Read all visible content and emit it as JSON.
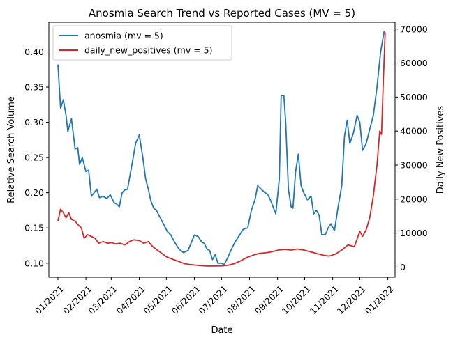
{
  "chart_data": {
    "type": "line",
    "title": "Anosmia Search Trend vs Reported Cases (MV = 5)",
    "xlabel": "Date",
    "ylabel_left": "Relative Search Volume",
    "ylabel_right": "Daily New Positives",
    "x_ticks": [
      "01/2021",
      "02/2021",
      "03/2021",
      "04/2021",
      "05/2021",
      "06/2021",
      "07/2021",
      "08/2021",
      "09/2021",
      "10/2021",
      "11/2021",
      "12/2021",
      "01/2022"
    ],
    "y_left_ticks": [
      "0.10",
      "0.15",
      "0.20",
      "0.25",
      "0.30",
      "0.35",
      "0.40"
    ],
    "y_right_ticks": [
      "0",
      "10000",
      "20000",
      "30000",
      "40000",
      "50000",
      "60000",
      "70000"
    ],
    "y_left_lim": [
      0.08,
      0.442
    ],
    "y_right_lim": [
      -3000,
      72000
    ],
    "x_lim": [
      "2020-12-22",
      "2022-01-09"
    ],
    "legend_position": "top-left",
    "series": [
      {
        "name": "anosmia (mv = 5)",
        "axis": "left",
        "color": "#1f77b4",
        "points": [
          [
            "2021-01-01",
            0.382
          ],
          [
            "2021-01-04",
            0.32
          ],
          [
            "2021-01-07",
            0.332
          ],
          [
            "2021-01-10",
            0.31
          ],
          [
            "2021-01-12",
            0.287
          ],
          [
            "2021-01-16",
            0.305
          ],
          [
            "2021-01-20",
            0.262
          ],
          [
            "2021-01-23",
            0.264
          ],
          [
            "2021-01-25",
            0.24
          ],
          [
            "2021-01-28",
            0.25
          ],
          [
            "2021-02-01",
            0.23
          ],
          [
            "2021-02-04",
            0.232
          ],
          [
            "2021-02-07",
            0.195
          ],
          [
            "2021-02-10",
            0.2
          ],
          [
            "2021-02-13",
            0.205
          ],
          [
            "2021-02-16",
            0.193
          ],
          [
            "2021-02-20",
            0.195
          ],
          [
            "2021-02-24",
            0.192
          ],
          [
            "2021-02-28",
            0.197
          ],
          [
            "2021-03-04",
            0.186
          ],
          [
            "2021-03-07",
            0.184
          ],
          [
            "2021-03-10",
            0.18
          ],
          [
            "2021-03-13",
            0.2
          ],
          [
            "2021-03-16",
            0.204
          ],
          [
            "2021-03-19",
            0.205
          ],
          [
            "2021-03-24",
            0.24
          ],
          [
            "2021-03-28",
            0.27
          ],
          [
            "2021-04-01",
            0.282
          ],
          [
            "2021-04-05",
            0.25
          ],
          [
            "2021-04-08",
            0.22
          ],
          [
            "2021-04-11",
            0.205
          ],
          [
            "2021-04-14",
            0.188
          ],
          [
            "2021-04-17",
            0.178
          ],
          [
            "2021-04-20",
            0.175
          ],
          [
            "2021-04-24",
            0.165
          ],
          [
            "2021-04-28",
            0.155
          ],
          [
            "2021-05-02",
            0.145
          ],
          [
            "2021-05-06",
            0.14
          ],
          [
            "2021-05-10",
            0.13
          ],
          [
            "2021-05-15",
            0.12
          ],
          [
            "2021-05-20",
            0.115
          ],
          [
            "2021-05-25",
            0.118
          ],
          [
            "2021-06-01",
            0.14
          ],
          [
            "2021-06-05",
            0.138
          ],
          [
            "2021-06-09",
            0.13
          ],
          [
            "2021-06-12",
            0.128
          ],
          [
            "2021-06-15",
            0.12
          ],
          [
            "2021-06-18",
            0.118
          ],
          [
            "2021-06-21",
            0.105
          ],
          [
            "2021-06-24",
            0.112
          ],
          [
            "2021-06-27",
            0.1
          ],
          [
            "2021-07-01",
            0.1
          ],
          [
            "2021-07-04",
            0.098
          ],
          [
            "2021-07-08",
            0.108
          ],
          [
            "2021-07-12",
            0.12
          ],
          [
            "2021-07-16",
            0.13
          ],
          [
            "2021-07-20",
            0.138
          ],
          [
            "2021-07-25",
            0.148
          ],
          [
            "2021-07-30",
            0.15
          ],
          [
            "2021-08-03",
            0.175
          ],
          [
            "2021-08-07",
            0.19
          ],
          [
            "2021-08-10",
            0.21
          ],
          [
            "2021-08-14",
            0.205
          ],
          [
            "2021-08-18",
            0.2
          ],
          [
            "2021-08-21",
            0.198
          ],
          [
            "2021-08-24",
            0.19
          ],
          [
            "2021-08-27",
            0.18
          ],
          [
            "2021-08-30",
            0.17
          ],
          [
            "2021-09-03",
            0.22
          ],
          [
            "2021-09-05",
            0.338
          ],
          [
            "2021-09-08",
            0.338
          ],
          [
            "2021-09-10",
            0.3
          ],
          [
            "2021-09-13",
            0.205
          ],
          [
            "2021-09-16",
            0.18
          ],
          [
            "2021-09-18",
            0.178
          ],
          [
            "2021-09-21",
            0.23
          ],
          [
            "2021-09-24",
            0.255
          ],
          [
            "2021-09-27",
            0.21
          ],
          [
            "2021-09-30",
            0.2
          ],
          [
            "2021-10-04",
            0.19
          ],
          [
            "2021-10-08",
            0.195
          ],
          [
            "2021-10-11",
            0.17
          ],
          [
            "2021-10-14",
            0.175
          ],
          [
            "2021-10-17",
            0.168
          ],
          [
            "2021-10-20",
            0.14
          ],
          [
            "2021-10-24",
            0.141
          ],
          [
            "2021-10-27",
            0.15
          ],
          [
            "2021-10-30",
            0.156
          ],
          [
            "2021-11-03",
            0.146
          ],
          [
            "2021-11-07",
            0.18
          ],
          [
            "2021-11-11",
            0.21
          ],
          [
            "2021-11-14",
            0.28
          ],
          [
            "2021-11-17",
            0.303
          ],
          [
            "2021-11-20",
            0.27
          ],
          [
            "2021-11-24",
            0.285
          ],
          [
            "2021-11-28",
            0.31
          ],
          [
            "2021-12-01",
            0.3
          ],
          [
            "2021-12-04",
            0.26
          ],
          [
            "2021-12-08",
            0.27
          ],
          [
            "2021-12-12",
            0.29
          ],
          [
            "2021-12-16",
            0.31
          ],
          [
            "2021-12-20",
            0.35
          ],
          [
            "2021-12-24",
            0.4
          ],
          [
            "2021-12-28",
            0.43
          ]
        ]
      },
      {
        "name": "daily_new_positives (mv = 5)",
        "axis": "right",
        "color": "#d62728",
        "points": [
          [
            "2021-01-01",
            13500
          ],
          [
            "2021-01-04",
            17000
          ],
          [
            "2021-01-07",
            16000
          ],
          [
            "2021-01-10",
            14500
          ],
          [
            "2021-01-13",
            16000
          ],
          [
            "2021-01-16",
            14000
          ],
          [
            "2021-01-20",
            13500
          ],
          [
            "2021-01-23",
            12500
          ],
          [
            "2021-01-27",
            11500
          ],
          [
            "2021-01-30",
            8500
          ],
          [
            "2021-02-03",
            9500
          ],
          [
            "2021-02-07",
            9000
          ],
          [
            "2021-02-11",
            8500
          ],
          [
            "2021-02-15",
            7000
          ],
          [
            "2021-02-20",
            7500
          ],
          [
            "2021-02-25",
            7000
          ],
          [
            "2021-03-01",
            7200
          ],
          [
            "2021-03-06",
            6800
          ],
          [
            "2021-03-11",
            7000
          ],
          [
            "2021-03-16",
            6500
          ],
          [
            "2021-03-21",
            7500
          ],
          [
            "2021-03-26",
            8000
          ],
          [
            "2021-04-01",
            7800
          ],
          [
            "2021-04-06",
            7000
          ],
          [
            "2021-04-11",
            7500
          ],
          [
            "2021-04-16",
            6000
          ],
          [
            "2021-04-21",
            5000
          ],
          [
            "2021-04-26",
            4000
          ],
          [
            "2021-05-01",
            3000
          ],
          [
            "2021-05-06",
            2500
          ],
          [
            "2021-05-11",
            2000
          ],
          [
            "2021-05-16",
            1500
          ],
          [
            "2021-05-21",
            1000
          ],
          [
            "2021-05-26",
            800
          ],
          [
            "2021-06-01",
            600
          ],
          [
            "2021-06-08",
            400
          ],
          [
            "2021-06-15",
            300
          ],
          [
            "2021-06-22",
            300
          ],
          [
            "2021-07-01",
            350
          ],
          [
            "2021-07-08",
            500
          ],
          [
            "2021-07-15",
            1000
          ],
          [
            "2021-07-22",
            1800
          ],
          [
            "2021-07-29",
            2800
          ],
          [
            "2021-08-05",
            3500
          ],
          [
            "2021-08-12",
            4000
          ],
          [
            "2021-08-19",
            4200
          ],
          [
            "2021-08-26",
            4500
          ],
          [
            "2021-09-02",
            5000
          ],
          [
            "2021-09-09",
            5200
          ],
          [
            "2021-09-16",
            5000
          ],
          [
            "2021-09-23",
            5300
          ],
          [
            "2021-09-30",
            5000
          ],
          [
            "2021-10-07",
            4500
          ],
          [
            "2021-10-14",
            4000
          ],
          [
            "2021-10-21",
            3500
          ],
          [
            "2021-10-28",
            3200
          ],
          [
            "2021-11-04",
            3800
          ],
          [
            "2021-11-11",
            5000
          ],
          [
            "2021-11-18",
            6500
          ],
          [
            "2021-11-25",
            6000
          ],
          [
            "2021-12-01",
            10500
          ],
          [
            "2021-12-04",
            9000
          ],
          [
            "2021-12-08",
            11000
          ],
          [
            "2021-12-12",
            14500
          ],
          [
            "2021-12-16",
            21000
          ],
          [
            "2021-12-20",
            30000
          ],
          [
            "2021-12-23",
            40000
          ],
          [
            "2021-12-25",
            39000
          ],
          [
            "2021-12-27",
            55000
          ],
          [
            "2021-12-29",
            69000
          ]
        ]
      }
    ]
  }
}
